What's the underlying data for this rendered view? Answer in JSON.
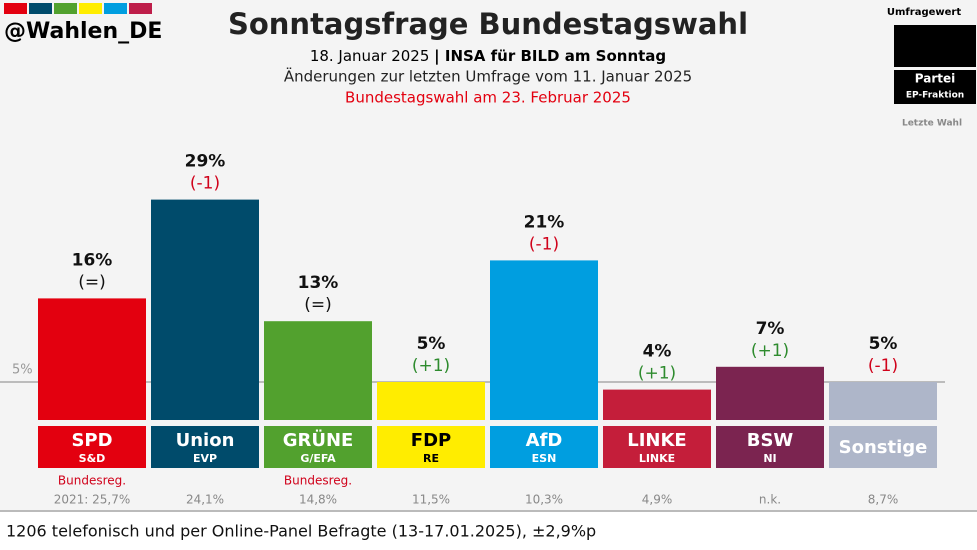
{
  "chart_data": {
    "type": "bar",
    "handle": "@Wahlen_DE",
    "title": "Sonntagsfrage Bundestagswahl",
    "date": "18. Januar 2025",
    "source": "| INSA für BILD am Sonntag",
    "subtitle": "Änderungen zur letzten Umfrage vom 11. Januar 2025",
    "election_note": "Bundestagswahl am 23. Februar 2025",
    "legend": {
      "value": "Umfragewert",
      "party": "Partei",
      "group": "EP-Fraktion",
      "last": "Letzte Wahl"
    },
    "categories": [
      "SPD",
      "Union",
      "GRÜNE",
      "FDP",
      "AfD",
      "LINKE",
      "BSW",
      "Sonstige"
    ],
    "ep_groups": [
      "S&D",
      "EVP",
      "G/EFA",
      "RE",
      "ESN",
      "LINKE",
      "NI",
      null
    ],
    "values": [
      16,
      29,
      13,
      5,
      21,
      4,
      7,
      5
    ],
    "value_labels": [
      "16%",
      "29%",
      "13%",
      "5%",
      "21%",
      "4%",
      "7%",
      "5%"
    ],
    "changes": [
      "(=)",
      "(-1)",
      "(=)",
      "(+1)",
      "(-1)",
      "(+1)",
      "(+1)",
      "(-1)"
    ],
    "colors": [
      "#e3000f",
      "#004b6b",
      "#52a12e",
      "#ffed00",
      "#009ee0",
      "#c41e3a",
      "#7b2450",
      "#aeb6c9"
    ],
    "label_text_colors": [
      "#ffffff",
      "#ffffff",
      "#ffffff",
      "#000000",
      "#ffffff",
      "#ffffff",
      "#ffffff",
      "#ffffff"
    ],
    "notes": [
      "Bundesreg.",
      null,
      "Bundesreg.",
      null,
      null,
      null,
      null,
      null
    ],
    "last_election": [
      "2021: 25,7%",
      "24,1%",
      "14,8%",
      "11,5%",
      "10,3%",
      "4,9%",
      "n.k.",
      "8,7%"
    ],
    "threshold": {
      "value": 5,
      "label": "5%"
    },
    "ylim": [
      0,
      30
    ],
    "footer": "1206 telefonisch und per Online-Panel Befragte (13-17.01.2025), ±2,9%p"
  }
}
